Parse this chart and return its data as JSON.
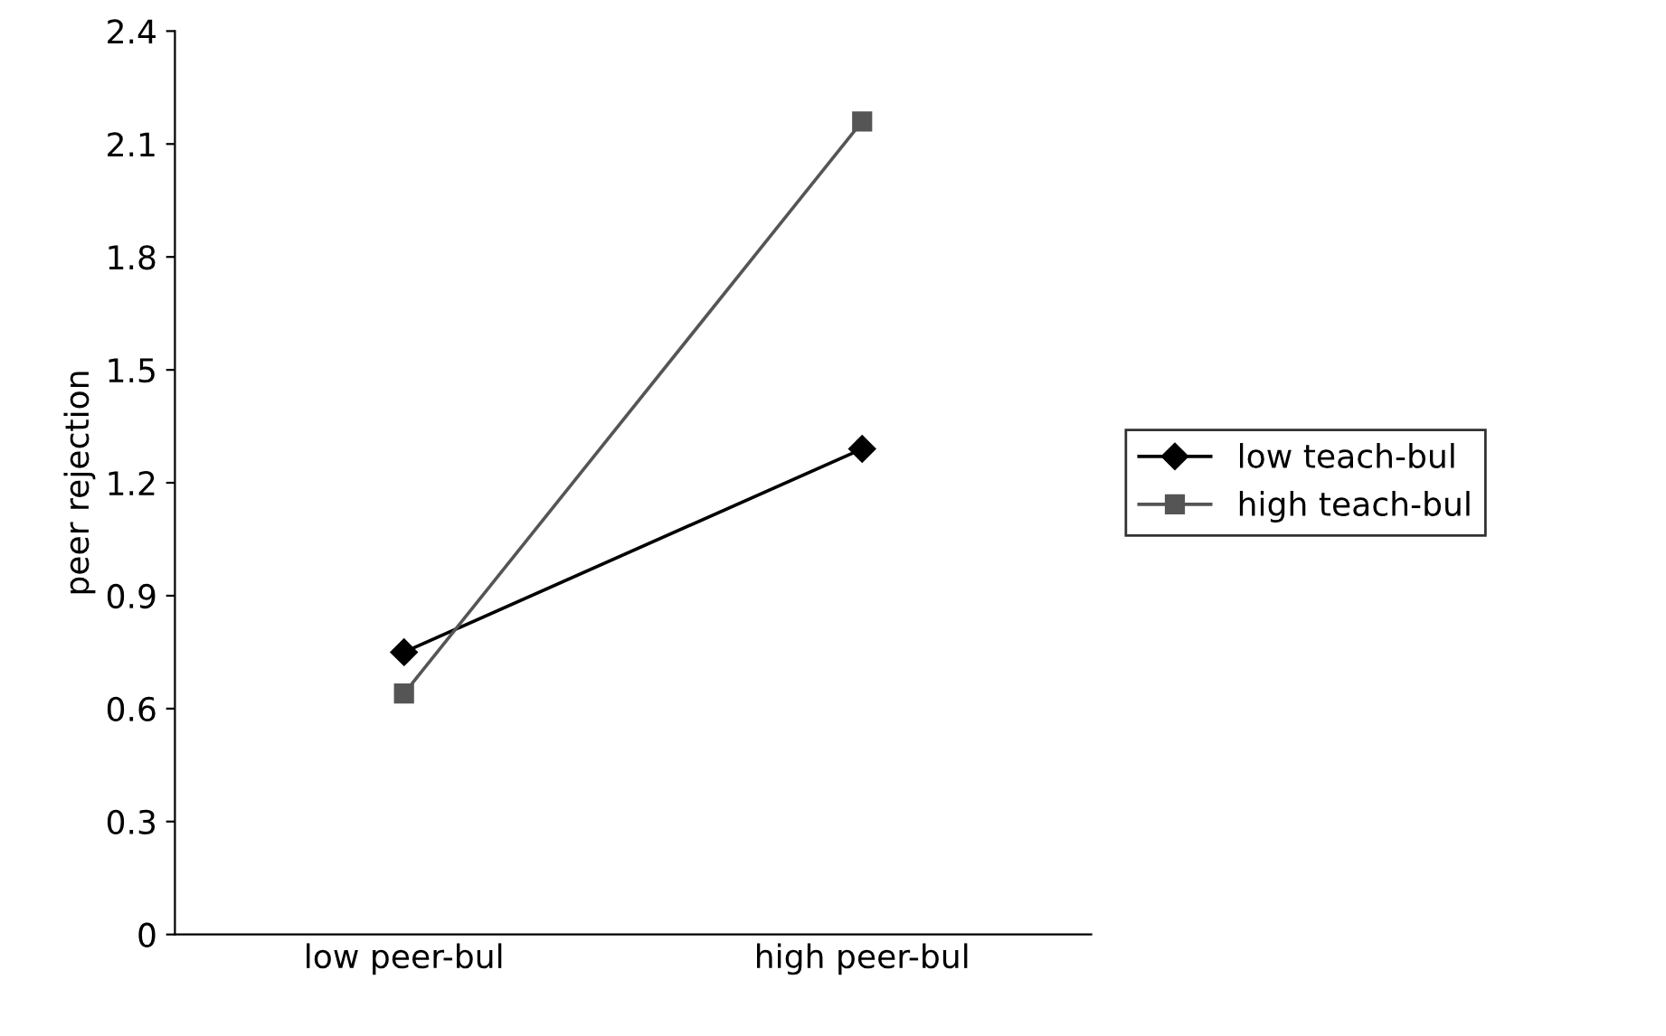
{
  "chart_data": {
    "type": "line",
    "ylabel": "peer rejection",
    "categories": [
      "low peer-bul",
      "high peer-bul"
    ],
    "series": [
      {
        "name": "low teach-bul",
        "color": "#000000",
        "marker": "diamond",
        "values": [
          0.75,
          1.29
        ]
      },
      {
        "name": "high teach-bul",
        "color": "#555555",
        "marker": "square",
        "values": [
          0.64,
          2.16
        ]
      }
    ],
    "ylim": [
      0,
      2.4
    ],
    "yticks": [
      0,
      0.3,
      0.6,
      0.9,
      1.2,
      1.5,
      1.8,
      2.1,
      2.4
    ],
    "legend": "right",
    "grid": false,
    "line_style": "solid"
  }
}
